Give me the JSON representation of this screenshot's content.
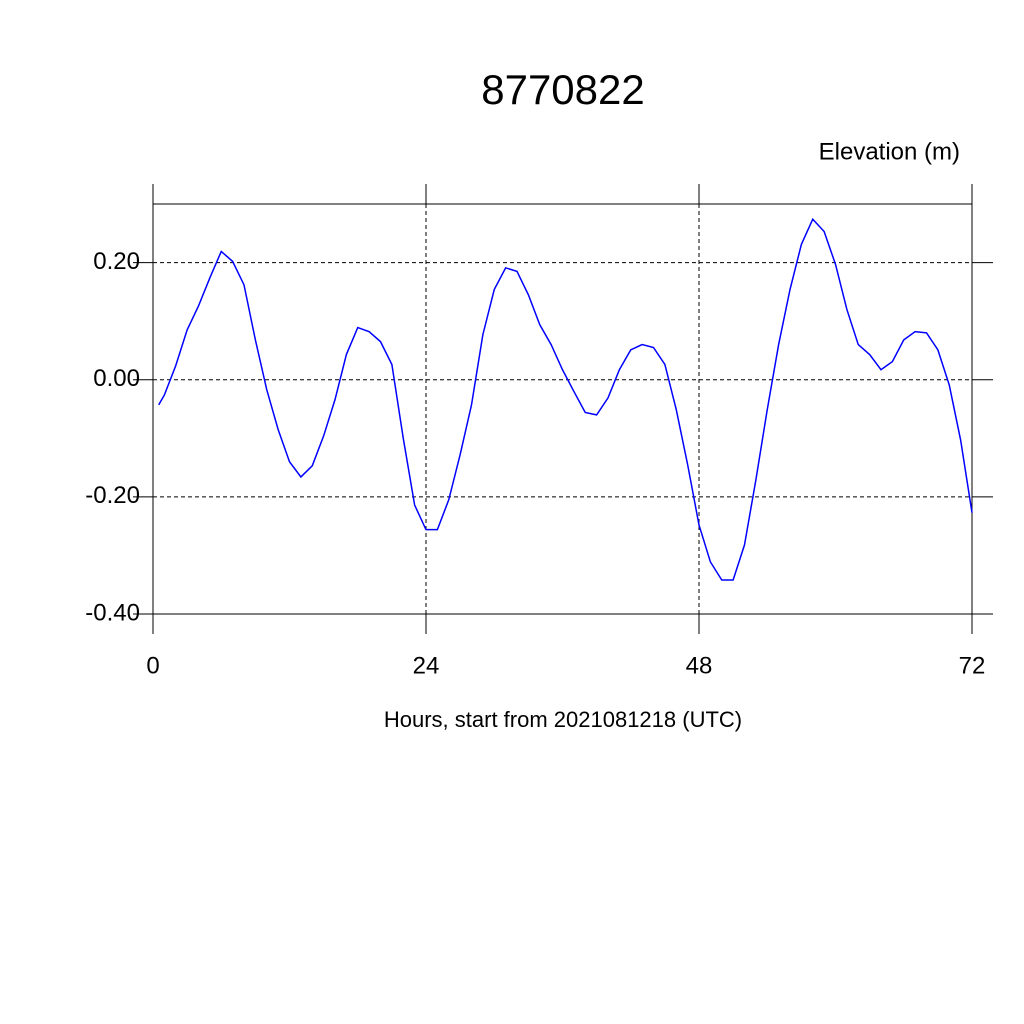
{
  "chart_data": {
    "type": "line",
    "title": "8770822",
    "subtitle": "Elevation (m)",
    "x_label": "Hours, start from 2021081218 (UTC)",
    "x": [
      0.5,
      1,
      2,
      3,
      4,
      5,
      6,
      7,
      8,
      9,
      10,
      11,
      12,
      13,
      14,
      15,
      16,
      17,
      18,
      19,
      20,
      21,
      22,
      23,
      24,
      25,
      26,
      27,
      28,
      29,
      30,
      31,
      32,
      33,
      34,
      35,
      36,
      37,
      38,
      39,
      40,
      41,
      42,
      43,
      44,
      45,
      46,
      47,
      48,
      49,
      50,
      51,
      52,
      53,
      54,
      55,
      56,
      57,
      58,
      59,
      60,
      61,
      62,
      63,
      64,
      65,
      66,
      67,
      68,
      69,
      70,
      71,
      72
    ],
    "series": [
      {
        "name": "Elevation",
        "color": "#0000ff",
        "values": [
          -0.043,
          -0.026,
          0.024,
          0.085,
          0.126,
          0.174,
          0.219,
          0.202,
          0.162,
          0.068,
          -0.017,
          -0.085,
          -0.14,
          -0.166,
          -0.147,
          -0.096,
          -0.034,
          0.043,
          0.089,
          0.082,
          0.065,
          0.026,
          -0.1,
          -0.214,
          -0.256,
          -0.256,
          -0.205,
          -0.128,
          -0.043,
          0.077,
          0.154,
          0.191,
          0.185,
          0.145,
          0.094,
          0.06,
          0.017,
          -0.02,
          -0.056,
          -0.06,
          -0.031,
          0.017,
          0.051,
          0.06,
          0.055,
          0.026,
          -0.051,
          -0.145,
          -0.248,
          -0.311,
          -0.342,
          -0.342,
          -0.282,
          -0.171,
          -0.051,
          0.06,
          0.154,
          0.231,
          0.274,
          0.253,
          0.197,
          0.12,
          0.06,
          0.043,
          0.017,
          0.031,
          0.068,
          0.082,
          0.08,
          0.051,
          -0.009,
          -0.103,
          -0.227
        ]
      }
    ],
    "xlim": [
      0,
      72
    ],
    "xticks": [
      0,
      24,
      48,
      72
    ],
    "ylim": [
      -0.4,
      0.3
    ],
    "yticks": [
      {
        "value": -0.4,
        "label": "-0.40"
      },
      {
        "value": -0.2,
        "label": "-0.20"
      },
      {
        "value": 0,
        "label": "0.00"
      },
      {
        "value": 0.2,
        "label": "0.20"
      }
    ],
    "grid": true
  }
}
